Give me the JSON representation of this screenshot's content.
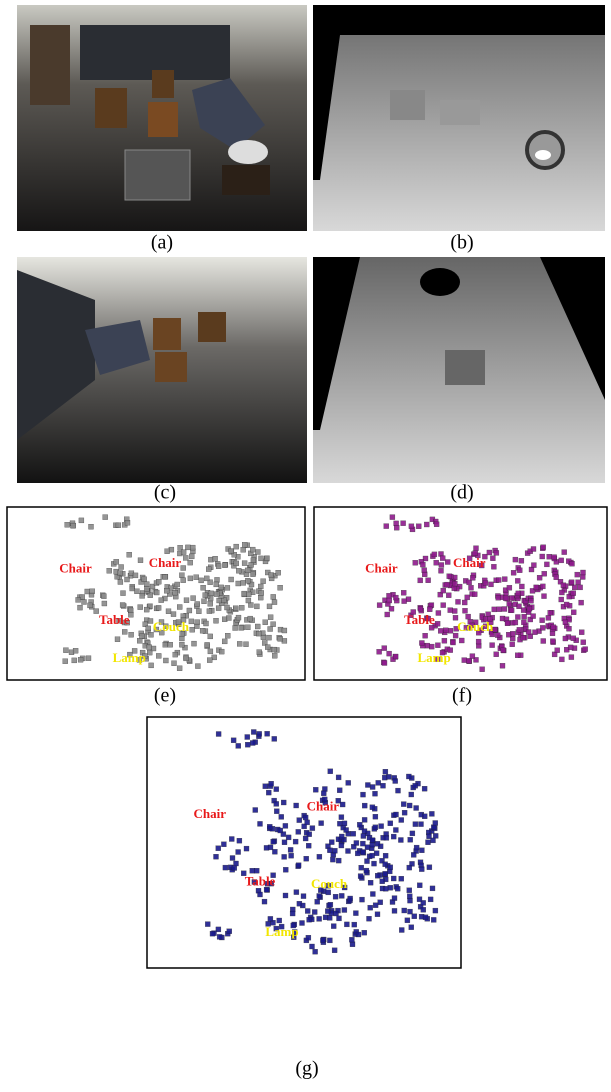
{
  "panels": [
    {
      "caption": "(a)"
    },
    {
      "caption": "(b)"
    },
    {
      "caption": "(c)"
    },
    {
      "caption": "(d)"
    },
    {
      "caption": "(e)",
      "voxel_color": "#8a8a8a",
      "labels": [
        {
          "text": "Chair",
          "color": "#e8191a"
        },
        {
          "text": "Chair",
          "color": "#e8191a"
        },
        {
          "text": "Table",
          "color": "#e8191a"
        },
        {
          "text": "Couch",
          "color": "#f2e600"
        },
        {
          "text": "Lamp",
          "color": "#f2e600"
        }
      ]
    },
    {
      "caption": "(f)",
      "voxel_color": "#8e1a8c",
      "labels": [
        {
          "text": "Chair",
          "color": "#e8191a"
        },
        {
          "text": "Chair",
          "color": "#e8191a"
        },
        {
          "text": "Table",
          "color": "#e8191a"
        },
        {
          "text": "Couch",
          "color": "#f2e600"
        },
        {
          "text": "Lamp",
          "color": "#f2e600"
        }
      ]
    },
    {
      "caption": "(g)",
      "voxel_color": "#1a1a8c",
      "labels": [
        {
          "text": "Chair",
          "color": "#e8191a"
        },
        {
          "text": "Chair",
          "color": "#e8191a"
        },
        {
          "text": "Table",
          "color": "#e8191a"
        },
        {
          "text": "Couch",
          "color": "#f2e600"
        },
        {
          "text": "Lamp",
          "color": "#f2e600"
        }
      ]
    }
  ]
}
